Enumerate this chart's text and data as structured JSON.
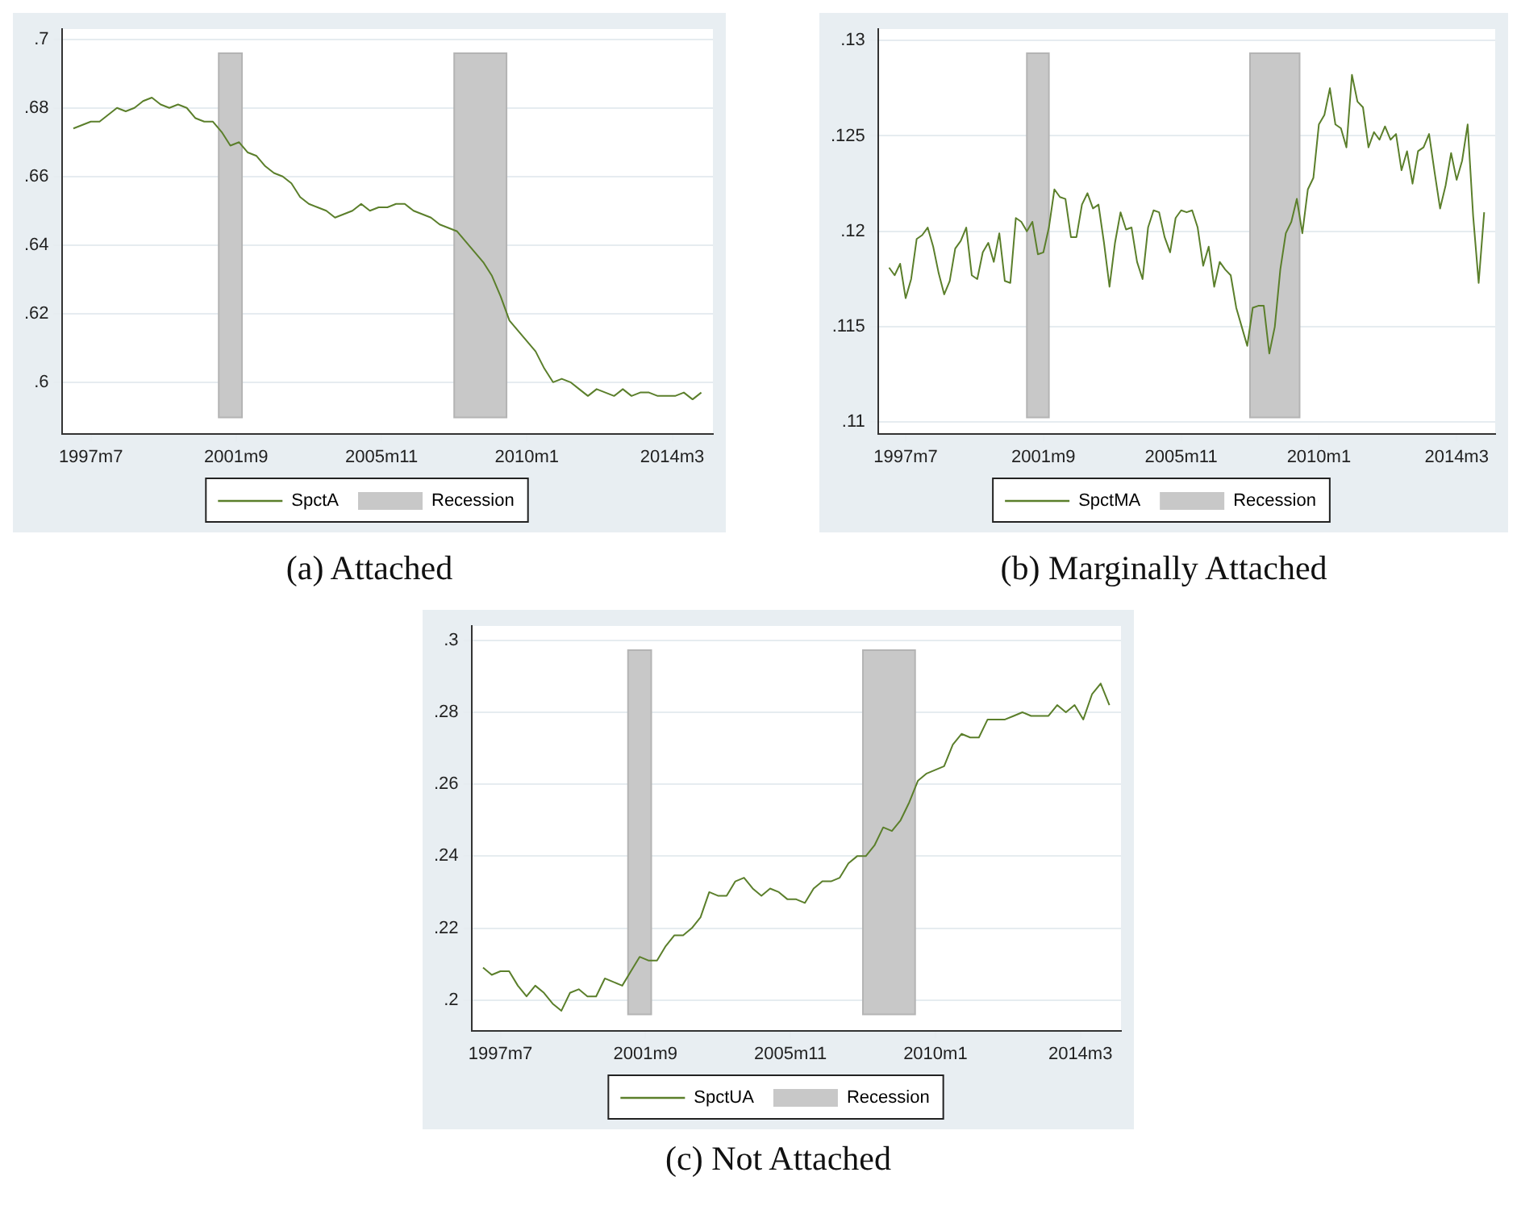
{
  "chart_data": [
    {
      "type": "line",
      "title": "(a) Attached",
      "x": [
        "1997-01",
        "1997-04",
        "1997-07",
        "1997-10",
        "1998-01",
        "1998-04",
        "1998-07",
        "1998-10",
        "1999-01",
        "1999-04",
        "1999-07",
        "1999-10",
        "2000-01",
        "2000-04",
        "2000-07",
        "2000-10",
        "2001-01",
        "2001-04",
        "2001-07",
        "2001-10",
        "2002-01",
        "2002-04",
        "2002-07",
        "2002-10",
        "2003-01",
        "2003-04",
        "2003-07",
        "2003-10",
        "2004-01",
        "2004-04",
        "2004-07",
        "2004-10",
        "2005-01",
        "2005-04",
        "2005-07",
        "2005-10",
        "2006-01",
        "2006-04",
        "2006-07",
        "2006-10",
        "2007-01",
        "2007-04",
        "2007-07",
        "2007-10",
        "2008-01",
        "2008-04",
        "2008-07",
        "2008-10",
        "2009-01",
        "2009-04",
        "2009-07",
        "2009-10",
        "2010-01",
        "2010-04",
        "2010-07",
        "2010-10",
        "2011-01",
        "2011-04",
        "2011-07",
        "2011-10",
        "2012-01",
        "2012-04",
        "2012-07",
        "2012-10",
        "2013-01",
        "2013-04",
        "2013-07",
        "2013-10",
        "2014-01",
        "2014-04",
        "2014-07",
        "2014-10",
        "2015-01"
      ],
      "series": [
        {
          "name": "SpctA",
          "color": "#5b7f2b",
          "values": [
            0.674,
            0.675,
            0.676,
            0.676,
            0.678,
            0.68,
            0.679,
            0.68,
            0.682,
            0.683,
            0.681,
            0.68,
            0.681,
            0.68,
            0.677,
            0.676,
            0.676,
            0.673,
            0.669,
            0.67,
            0.667,
            0.666,
            0.663,
            0.661,
            0.66,
            0.658,
            0.654,
            0.652,
            0.651,
            0.65,
            0.648,
            0.649,
            0.65,
            0.652,
            0.65,
            0.651,
            0.651,
            0.652,
            0.652,
            0.65,
            0.649,
            0.648,
            0.646,
            0.645,
            0.644,
            0.641,
            0.638,
            0.635,
            0.631,
            0.625,
            0.618,
            0.615,
            0.612,
            0.609,
            0.604,
            0.6,
            0.601,
            0.6,
            0.598,
            0.596,
            0.598,
            0.597,
            0.596,
            0.598,
            0.596,
            0.597,
            0.597,
            0.596,
            0.596,
            0.596,
            0.597,
            0.595,
            0.597
          ]
        }
      ],
      "bands": [
        {
          "axis": "x",
          "from": "2001-03",
          "to": "2001-11",
          "label": "Recession",
          "color": "#c8c8c8"
        },
        {
          "axis": "x",
          "from": "2007-12",
          "to": "2009-06",
          "color": "#c8c8c8"
        }
      ],
      "xlim": [
        "1996-09",
        "2015-05"
      ],
      "xticks": [
        {
          "value": "1997-07",
          "label": "1997m7"
        },
        {
          "value": "2001-09",
          "label": "2001m9"
        },
        {
          "value": "2005-11",
          "label": "2005m11"
        },
        {
          "value": "2010-01",
          "label": "2010m1"
        },
        {
          "value": "2014-03",
          "label": "2014m3"
        }
      ],
      "ylim": [
        0.585,
        0.703
      ],
      "yticks": [
        {
          "value": 0.6,
          "label": ".6"
        },
        {
          "value": 0.62,
          "label": ".62"
        },
        {
          "value": 0.64,
          "label": ".64"
        },
        {
          "value": 0.66,
          "label": ".66"
        },
        {
          "value": 0.68,
          "label": ".68"
        },
        {
          "value": 0.7,
          "label": ".7"
        }
      ],
      "grid": "y",
      "legend": "bottom"
    },
    {
      "type": "line",
      "title": "(b) Marginally Attached",
      "x": [
        "1997-01",
        "1997-03",
        "1997-05",
        "1997-07",
        "1997-09",
        "1997-11",
        "1998-01",
        "1998-03",
        "1998-05",
        "1998-07",
        "1998-09",
        "1998-11",
        "1999-01",
        "1999-03",
        "1999-05",
        "1999-07",
        "1999-09",
        "1999-11",
        "2000-01",
        "2000-03",
        "2000-05",
        "2000-07",
        "2000-09",
        "2000-11",
        "2001-01",
        "2001-03",
        "2001-05",
        "2001-07",
        "2001-09",
        "2001-11",
        "2002-01",
        "2002-03",
        "2002-05",
        "2002-07",
        "2002-09",
        "2002-11",
        "2003-01",
        "2003-03",
        "2003-05",
        "2003-07",
        "2003-09",
        "2003-11",
        "2004-01",
        "2004-03",
        "2004-05",
        "2004-07",
        "2004-09",
        "2004-11",
        "2005-01",
        "2005-03",
        "2005-05",
        "2005-07",
        "2005-09",
        "2005-11",
        "2006-01",
        "2006-03",
        "2006-05",
        "2006-07",
        "2006-09",
        "2006-11",
        "2007-01",
        "2007-03",
        "2007-05",
        "2007-07",
        "2007-09",
        "2007-11",
        "2008-01",
        "2008-03",
        "2008-05",
        "2008-07",
        "2008-09",
        "2008-11",
        "2009-01",
        "2009-03",
        "2009-05",
        "2009-07",
        "2009-09",
        "2009-11",
        "2010-01",
        "2010-03",
        "2010-05",
        "2010-07",
        "2010-09",
        "2010-11",
        "2011-01",
        "2011-03",
        "2011-05",
        "2011-07",
        "2011-09",
        "2011-11",
        "2012-01",
        "2012-03",
        "2012-05",
        "2012-07",
        "2012-09",
        "2012-11",
        "2013-01",
        "2013-03",
        "2013-05",
        "2013-07",
        "2013-09",
        "2013-11",
        "2014-01",
        "2014-03",
        "2014-05",
        "2014-07",
        "2014-09",
        "2014-11",
        "2015-01"
      ],
      "series": [
        {
          "name": "SpctMA",
          "color": "#5b7f2b",
          "values": [
            0.1181,
            0.1177,
            0.1183,
            0.1165,
            0.1175,
            0.1196,
            0.1198,
            0.1202,
            0.1192,
            0.1178,
            0.1167,
            0.1174,
            0.1191,
            0.1195,
            0.1202,
            0.1177,
            0.1175,
            0.1189,
            0.1194,
            0.1184,
            0.1199,
            0.1174,
            0.1173,
            0.1207,
            0.1205,
            0.12,
            0.1205,
            0.1188,
            0.1189,
            0.1202,
            0.1222,
            0.1218,
            0.1217,
            0.1197,
            0.1197,
            0.1214,
            0.122,
            0.1212,
            0.1214,
            0.1194,
            0.1171,
            0.1194,
            0.121,
            0.1201,
            0.1202,
            0.1184,
            0.1175,
            0.1202,
            0.1211,
            0.121,
            0.1197,
            0.1189,
            0.1207,
            0.1211,
            0.121,
            0.1211,
            0.1202,
            0.1182,
            0.1192,
            0.1171,
            0.1184,
            0.118,
            0.1177,
            0.116,
            0.115,
            0.114,
            0.116,
            0.1161,
            0.1161,
            0.1136,
            0.115,
            0.118,
            0.1199,
            0.1205,
            0.1217,
            0.1199,
            0.1222,
            0.1228,
            0.1256,
            0.1261,
            0.1275,
            0.1256,
            0.1254,
            0.1244,
            0.1282,
            0.1268,
            0.1265,
            0.1244,
            0.1252,
            0.1248,
            0.1255,
            0.1248,
            0.1251,
            0.1232,
            0.1242,
            0.1225,
            0.1242,
            0.1244,
            0.1251,
            0.1231,
            0.1212,
            0.1224,
            0.1241,
            0.1227,
            0.1237,
            0.1256,
            0.1208,
            0.1173,
            0.121
          ]
        }
      ],
      "bands": [
        {
          "axis": "x",
          "from": "2001-03",
          "to": "2001-11",
          "label": "Recession",
          "color": "#c8c8c8"
        },
        {
          "axis": "x",
          "from": "2007-12",
          "to": "2009-06",
          "color": "#c8c8c8"
        }
      ],
      "xlim": [
        "1996-09",
        "2015-05"
      ],
      "xticks": [
        {
          "value": "1997-07",
          "label": "1997m7"
        },
        {
          "value": "2001-09",
          "label": "2001m9"
        },
        {
          "value": "2005-11",
          "label": "2005m11"
        },
        {
          "value": "2010-01",
          "label": "2010m1"
        },
        {
          "value": "2014-03",
          "label": "2014m3"
        }
      ],
      "ylim": [
        0.1094,
        0.1306
      ],
      "yticks": [
        {
          "value": 0.11,
          "label": ".11"
        },
        {
          "value": 0.115,
          "label": ".115"
        },
        {
          "value": 0.12,
          "label": ".12"
        },
        {
          "value": 0.125,
          "label": ".125"
        },
        {
          "value": 0.13,
          "label": ".13"
        }
      ],
      "grid": "y",
      "legend": "bottom"
    },
    {
      "type": "line",
      "title": "(c) Not Attached",
      "x": [
        "1997-01",
        "1997-04",
        "1997-07",
        "1997-10",
        "1998-01",
        "1998-04",
        "1998-07",
        "1998-10",
        "1999-01",
        "1999-04",
        "1999-07",
        "1999-10",
        "2000-01",
        "2000-04",
        "2000-07",
        "2000-10",
        "2001-01",
        "2001-04",
        "2001-07",
        "2001-10",
        "2002-01",
        "2002-04",
        "2002-07",
        "2002-10",
        "2003-01",
        "2003-04",
        "2003-07",
        "2003-10",
        "2004-01",
        "2004-04",
        "2004-07",
        "2004-10",
        "2005-01",
        "2005-04",
        "2005-07",
        "2005-10",
        "2006-01",
        "2006-04",
        "2006-07",
        "2006-10",
        "2007-01",
        "2007-04",
        "2007-07",
        "2007-10",
        "2008-01",
        "2008-04",
        "2008-07",
        "2008-10",
        "2009-01",
        "2009-04",
        "2009-07",
        "2009-10",
        "2010-01",
        "2010-04",
        "2010-07",
        "2010-10",
        "2011-01",
        "2011-04",
        "2011-07",
        "2011-10",
        "2012-01",
        "2012-04",
        "2012-07",
        "2012-10",
        "2013-01",
        "2013-04",
        "2013-07",
        "2013-10",
        "2014-01",
        "2014-04",
        "2014-07",
        "2014-10",
        "2015-01"
      ],
      "series": [
        {
          "name": "SpctUA",
          "color": "#5b7f2b",
          "values": [
            0.209,
            0.207,
            0.208,
            0.208,
            0.204,
            0.201,
            0.204,
            0.202,
            0.199,
            0.197,
            0.202,
            0.203,
            0.201,
            0.201,
            0.206,
            0.205,
            0.204,
            0.208,
            0.212,
            0.211,
            0.211,
            0.215,
            0.218,
            0.218,
            0.22,
            0.223,
            0.23,
            0.229,
            0.229,
            0.233,
            0.234,
            0.231,
            0.229,
            0.231,
            0.23,
            0.228,
            0.228,
            0.227,
            0.231,
            0.233,
            0.233,
            0.234,
            0.238,
            0.24,
            0.24,
            0.243,
            0.248,
            0.247,
            0.25,
            0.255,
            0.261,
            0.263,
            0.264,
            0.265,
            0.271,
            0.274,
            0.273,
            0.273,
            0.278,
            0.278,
            0.278,
            0.279,
            0.28,
            0.279,
            0.279,
            0.279,
            0.282,
            0.28,
            0.282,
            0.278,
            0.285,
            0.288,
            0.282
          ]
        }
      ],
      "bands": [
        {
          "axis": "x",
          "from": "2001-03",
          "to": "2001-11",
          "label": "Recession",
          "color": "#c8c8c8"
        },
        {
          "axis": "x",
          "from": "2007-12",
          "to": "2009-06",
          "color": "#c8c8c8"
        }
      ],
      "xlim": [
        "1996-09",
        "2015-05"
      ],
      "xticks": [
        {
          "value": "1997-07",
          "label": "1997m7"
        },
        {
          "value": "2001-09",
          "label": "2001m9"
        },
        {
          "value": "2005-11",
          "label": "2005m11"
        },
        {
          "value": "2010-01",
          "label": "2010m1"
        },
        {
          "value": "2014-03",
          "label": "2014m3"
        }
      ],
      "ylim": [
        0.1915,
        0.304
      ],
      "yticks": [
        {
          "value": 0.2,
          "label": ".2"
        },
        {
          "value": 0.22,
          "label": ".22"
        },
        {
          "value": 0.24,
          "label": ".24"
        },
        {
          "value": 0.26,
          "label": ".26"
        },
        {
          "value": 0.28,
          "label": ".28"
        },
        {
          "value": 0.3,
          "label": ".3"
        }
      ],
      "grid": "y",
      "legend": "bottom"
    }
  ]
}
